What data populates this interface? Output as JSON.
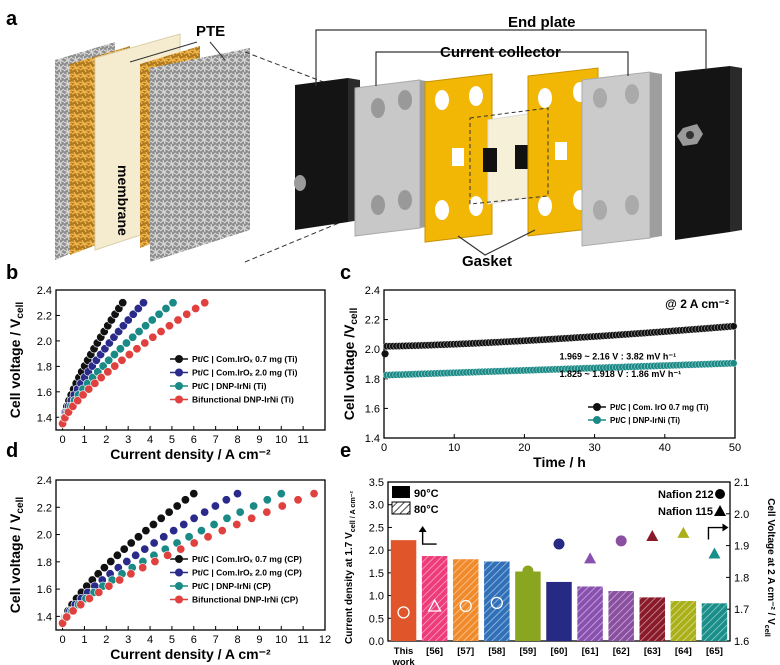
{
  "panel_labels": {
    "a": "a",
    "b": "b",
    "c": "c",
    "d": "d",
    "e": "e"
  },
  "panel_a": {
    "pte_label": "PTE",
    "membrane_label": "membrane",
    "end_plate_label": "End plate",
    "current_collector_label": "Current collector",
    "gasket_label": "Gasket"
  },
  "colors": {
    "black": "#111111",
    "navy": "#2a2a8a",
    "teal": "#1a8a86",
    "red": "#e0413f",
    "gold": "#f2b705"
  },
  "chart_data": [
    {
      "id": "b",
      "type": "scatter",
      "xlabel": "Current density / A cm⁻²",
      "ylabel": "Cell voltage / V_cell",
      "xlim": [
        -0.3,
        12
      ],
      "ylim": [
        1.3,
        2.4
      ],
      "xticks": [
        "0",
        "1",
        "2",
        "3",
        "4",
        "5",
        "6",
        "7",
        "8",
        "9",
        "10",
        "11"
      ],
      "yticks": [
        "1.4",
        "1.6",
        "1.8",
        "2.0",
        "2.2",
        "2.4"
      ],
      "series": [
        {
          "name": "Pt/C | Com.IrOₓ 0.7 mg (Ti)",
          "color": "#111111",
          "xmax": 2.75
        },
        {
          "name": "Pt/C | Com.IrOₓ 2.0 mg (Ti)",
          "color": "#2a2a8a",
          "xmax": 3.7
        },
        {
          "name": "Pt/C | DNP-IrNi  (Ti)",
          "color": "#1a8a86",
          "xmax": 5.05
        },
        {
          "name": "Bifunctional DNP-IrNi (Ti)",
          "color": "#e0413f",
          "xmax": 6.5
        }
      ]
    },
    {
      "id": "c",
      "type": "scatter",
      "xlabel": "Time / h",
      "ylabel": "Cell voltage /V_cell",
      "xlim": [
        0,
        50
      ],
      "ylim": [
        1.4,
        2.4
      ],
      "xticks": [
        "0",
        "10",
        "20",
        "30",
        "40",
        "50"
      ],
      "yticks": [
        "1.4",
        "1.6",
        "1.8",
        "2.0",
        "2.2",
        "2.4"
      ],
      "annotation_top": "@ 2 A cm⁻²",
      "series": [
        {
          "name": "Pt/C | Com. IrO 0.7 mg (Ti)",
          "color": "#111111",
          "y_start": 2.02,
          "y_end": 2.155,
          "annotation": "1.969 ~ 2.16 V : 3.82 mV h⁻¹"
        },
        {
          "name": "Pt/C | DNP-IrNi (Ti)",
          "color": "#1a8a86",
          "y_start": 1.825,
          "y_end": 1.905,
          "annotation": "1.825 ~ 1.918 V : 1.86 mV h⁻¹"
        }
      ]
    },
    {
      "id": "d",
      "type": "scatter",
      "xlabel": "Current density / A cm⁻²",
      "ylabel": "Cell voltage / V_cell",
      "xlim": [
        -0.3,
        12
      ],
      "ylim": [
        1.3,
        2.4
      ],
      "xticks": [
        "0",
        "1",
        "2",
        "3",
        "4",
        "5",
        "6",
        "7",
        "8",
        "9",
        "10",
        "11",
        "12"
      ],
      "yticks": [
        "1.4",
        "1.6",
        "1.8",
        "2.0",
        "2.2",
        "2.4"
      ],
      "series": [
        {
          "name": "Pt/C | Com.IrOₓ 0.7 mg (CP)",
          "color": "#111111",
          "xmax": 6.0
        },
        {
          "name": "Pt/C | Com.IrOₓ 2.0 mg (CP)",
          "color": "#2a2a8a",
          "xmax": 8.0
        },
        {
          "name": "Pt/C | DNP-IrNi (CP)",
          "color": "#1a8a86",
          "xmax": 10.0
        },
        {
          "name": "Bifunctional DNP-IrNi (CP)",
          "color": "#e0413f",
          "xmax": 11.5
        }
      ]
    },
    {
      "id": "e",
      "type": "bar",
      "categories": [
        "This work",
        "[56]",
        "[57]",
        "[58]",
        "[59]",
        "[60]",
        "[61]",
        "[62]",
        "[63]",
        "[64]",
        "[65]"
      ],
      "values": [
        2.22,
        1.87,
        1.8,
        1.75,
        1.53,
        1.3,
        1.2,
        1.1,
        0.96,
        0.88,
        0.83
      ],
      "bar_colors": [
        "#e0552a",
        "#ee3b79",
        "#f08a2a",
        "#3070b8",
        "#8aa620",
        "#262a84",
        "#8a50b0",
        "#8a4fa0",
        "#8a1a2a",
        "#aab018",
        "#1a8f8a"
      ],
      "hatched": [
        false,
        true,
        true,
        true,
        false,
        false,
        true,
        true,
        true,
        true,
        true
      ],
      "marker_values": [
        1.69,
        1.71,
        1.71,
        1.72,
        1.82,
        1.905,
        1.86,
        1.915,
        1.93,
        1.94,
        1.875
      ],
      "marker_shapes": [
        "circle",
        "triangle",
        "circle",
        "circle",
        "circle",
        "circle",
        "triangle",
        "circle",
        "triangle",
        "triangle",
        "triangle"
      ],
      "ylabel_left": "Current density at 1.7 V_cell / A cm⁻²",
      "ylabel_right": "Cell Voltage at 2 A cm⁻² / V_cell",
      "ylim_left": [
        0,
        3.5
      ],
      "ylim_right": [
        1.6,
        2.1
      ],
      "yticks_left": [
        "0.0",
        "0.5",
        "1.0",
        "1.5",
        "2.0",
        "2.5",
        "3.0",
        "3.5"
      ],
      "yticks_right": [
        "1.6",
        "1.7",
        "1.8",
        "1.9",
        "2.0",
        "2.1"
      ],
      "legend_90": "90°C",
      "legend_80": "80°C",
      "legend_n212": "Nafion 212",
      "legend_n115": "Nafion 115"
    }
  ]
}
